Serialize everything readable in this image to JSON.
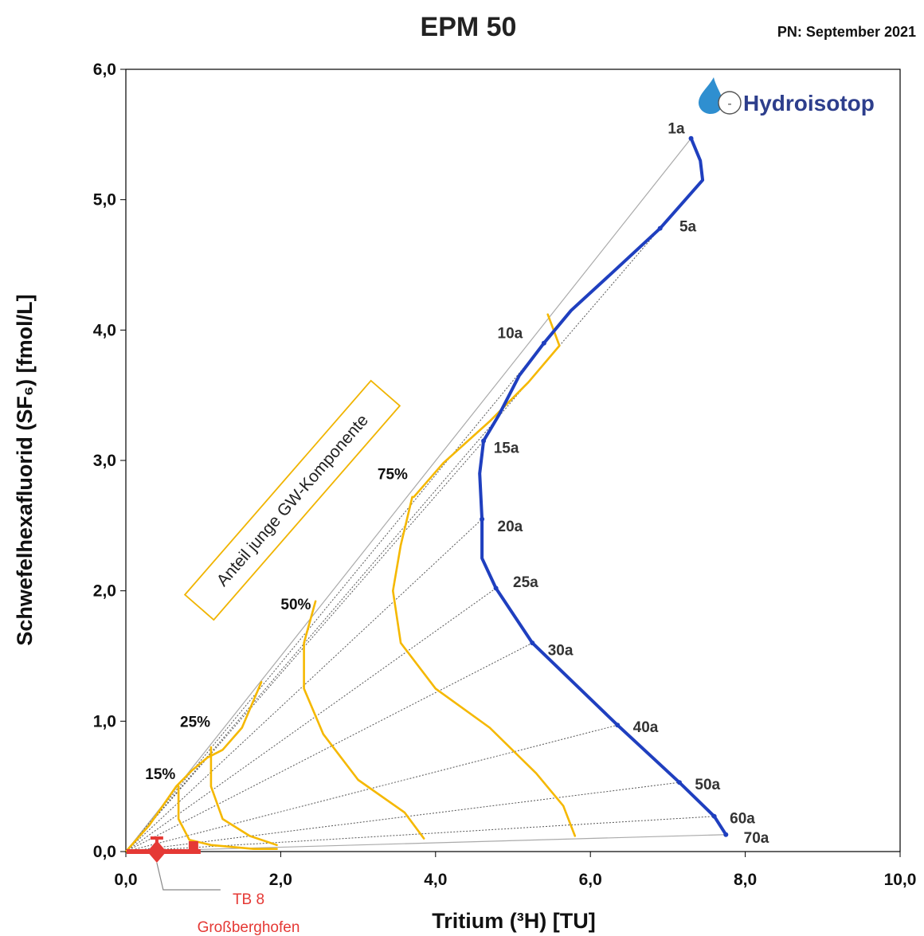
{
  "chart_data": {
    "type": "line",
    "title": "EPM 50",
    "subtitle": "PN:  September 2021",
    "xlabel": "Tritium (³H) [TU]",
    "ylabel": "Schwefelhexafluorid (SF₆) [fmol/L]",
    "xlim": [
      0,
      10
    ],
    "ylim": [
      0,
      6
    ],
    "x_ticks": [
      "0,0",
      "2,0",
      "4,0",
      "6,0",
      "8,0",
      "10,0"
    ],
    "y_ticks": [
      "0,0",
      "1,0",
      "2,0",
      "3,0",
      "4,0",
      "5,0",
      "6,0"
    ],
    "grid": false,
    "series": [
      {
        "name": "EPM 50",
        "color": "#1f3fbf",
        "points": [
          [
            7.3,
            5.47
          ],
          [
            7.42,
            5.3
          ],
          [
            7.45,
            5.15
          ],
          [
            6.9,
            4.78
          ],
          [
            6.3,
            4.45
          ],
          [
            5.75,
            4.15
          ],
          [
            5.4,
            3.9
          ],
          [
            5.08,
            3.65
          ],
          [
            4.82,
            3.35
          ],
          [
            4.62,
            3.15
          ],
          [
            4.57,
            2.9
          ],
          [
            4.6,
            2.55
          ],
          [
            4.6,
            2.25
          ],
          [
            4.78,
            2.02
          ],
          [
            5.25,
            1.6
          ],
          [
            6.35,
            0.97
          ],
          [
            7.15,
            0.53
          ],
          [
            7.6,
            0.27
          ],
          [
            7.75,
            0.13
          ]
        ]
      },
      {
        "name": "15%",
        "color": "#f5b800",
        "points": [
          [
            0.0,
            0.0
          ],
          [
            0.3,
            0.2
          ],
          [
            0.65,
            0.5
          ],
          [
            0.85,
            0.62
          ],
          [
            1.05,
            0.72
          ],
          [
            1.25,
            0.78
          ],
          [
            1.5,
            0.95
          ],
          [
            1.75,
            1.3
          ]
        ]
      },
      {
        "name": "25%",
        "color": "#f5b800",
        "points": [
          [
            0.68,
            0.5
          ],
          [
            0.68,
            0.25
          ],
          [
            0.82,
            0.09
          ],
          [
            1.1,
            0.05
          ],
          [
            1.65,
            0.02
          ],
          [
            1.95,
            0.02
          ]
        ]
      },
      {
        "name": "50%",
        "color": "#f5b800",
        "points": [
          [
            1.1,
            0.8
          ],
          [
            1.1,
            0.5
          ],
          [
            1.25,
            0.25
          ],
          [
            1.6,
            0.12
          ],
          [
            1.95,
            0.05
          ]
        ]
      },
      {
        "name": "75%",
        "color": "#f5b800",
        "points": [
          [
            2.45,
            1.92
          ],
          [
            2.3,
            1.6
          ],
          [
            2.3,
            1.25
          ],
          [
            2.55,
            0.9
          ],
          [
            3.0,
            0.55
          ],
          [
            3.6,
            0.3
          ],
          [
            3.85,
            0.1
          ]
        ]
      },
      {
        "name": "",
        "color": "#f5b800",
        "points": [
          [
            3.7,
            2.72
          ],
          [
            3.55,
            2.35
          ],
          [
            3.45,
            2.0
          ],
          [
            3.55,
            1.6
          ],
          [
            4.0,
            1.25
          ],
          [
            4.7,
            0.95
          ],
          [
            5.3,
            0.6
          ],
          [
            5.65,
            0.35
          ],
          [
            5.8,
            0.12
          ]
        ]
      },
      {
        "name": "",
        "color": "#f5b800",
        "points": [
          [
            5.45,
            4.12
          ],
          [
            5.6,
            3.88
          ],
          [
            5.2,
            3.6
          ],
          [
            4.7,
            3.3
          ],
          [
            4.1,
            2.98
          ],
          [
            3.72,
            2.72
          ]
        ]
      }
    ],
    "reference_lines_to": [
      [
        7.3,
        5.47
      ],
      [
        6.9,
        4.78
      ],
      [
        5.4,
        3.9
      ],
      [
        4.62,
        3.15
      ],
      [
        4.6,
        2.55
      ],
      [
        4.78,
        2.02
      ],
      [
        5.25,
        1.6
      ],
      [
        6.35,
        0.97
      ],
      [
        7.15,
        0.53
      ],
      [
        7.6,
        0.27
      ],
      [
        7.75,
        0.13
      ]
    ],
    "age_labels": [
      {
        "text": "1a",
        "x": 7.0,
        "y": 5.55
      },
      {
        "text": "5a",
        "x": 7.15,
        "y": 4.8
      },
      {
        "text": "10a",
        "x": 4.8,
        "y": 3.98
      },
      {
        "text": "15a",
        "x": 4.75,
        "y": 3.1
      },
      {
        "text": "20a",
        "x": 4.8,
        "y": 2.5
      },
      {
        "text": "25a",
        "x": 5.0,
        "y": 2.07
      },
      {
        "text": "30a",
        "x": 5.45,
        "y": 1.55
      },
      {
        "text": "40a",
        "x": 6.55,
        "y": 0.96
      },
      {
        "text": "50a",
        "x": 7.35,
        "y": 0.52
      },
      {
        "text": "60a",
        "x": 7.8,
        "y": 0.26
      },
      {
        "text": "70a",
        "x": 7.98,
        "y": 0.11
      }
    ],
    "percent_labels": [
      {
        "text": "15%",
        "x": 0.25,
        "y": 0.6
      },
      {
        "text": "25%",
        "x": 0.7,
        "y": 1.0
      },
      {
        "text": "50%",
        "x": 2.0,
        "y": 1.9
      },
      {
        "text": "75%",
        "x": 3.25,
        "y": 2.9
      }
    ],
    "annotation": "Anteil junge GW-Komponente",
    "sample": {
      "label": "TB 8",
      "label2": "Großberghofen",
      "x": 0.4,
      "y": 0.0,
      "color": "#e53935"
    },
    "logo": "Hydroisotop"
  }
}
